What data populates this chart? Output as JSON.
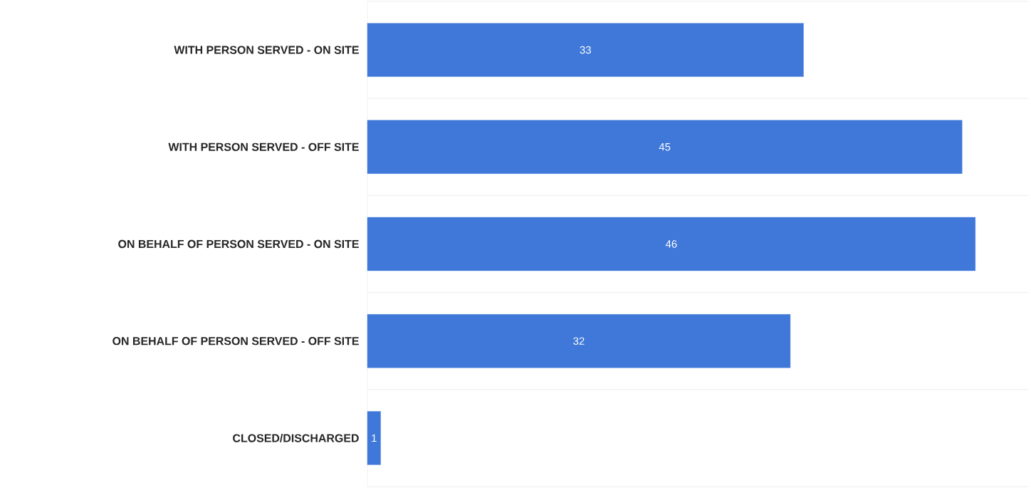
{
  "chart_data": {
    "type": "bar",
    "orientation": "horizontal",
    "categories": [
      "WITH PERSON SERVED - ON SITE",
      "WITH PERSON SERVED - OFF SITE",
      "ON BEHALF OF PERSON SERVED - ON SITE",
      "ON BEHALF OF PERSON SERVED - OFF SITE",
      "CLOSED/DISCHARGED"
    ],
    "values": [
      33,
      45,
      46,
      32,
      1
    ],
    "color": "#3f78d8",
    "xlim": [
      0,
      50
    ],
    "grid": "y",
    "tick_labels": "y",
    "data_labels": true
  }
}
